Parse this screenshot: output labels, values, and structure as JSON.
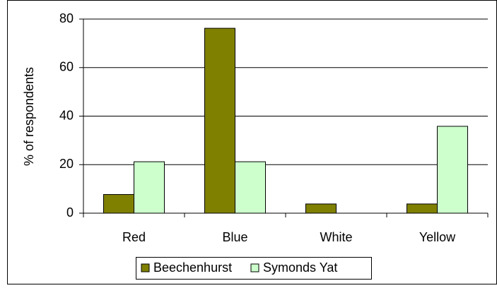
{
  "chart_data": {
    "type": "bar",
    "ylabel": "% of respondents",
    "categories": [
      "Red",
      "Blue",
      "White",
      "Yellow"
    ],
    "series": [
      {
        "name": "Beechenhurst",
        "color": "#808000",
        "values": [
          7.7,
          76.2,
          3.8,
          3.8
        ]
      },
      {
        "name": "Symonds Yat",
        "color": "#ccffcc",
        "values": [
          21.2,
          21.2,
          0,
          35.8
        ]
      }
    ],
    "ylim": [
      0,
      80
    ],
    "yticks": [
      0,
      20,
      40,
      60,
      80
    ],
    "grid": true,
    "legend": "bottom"
  }
}
